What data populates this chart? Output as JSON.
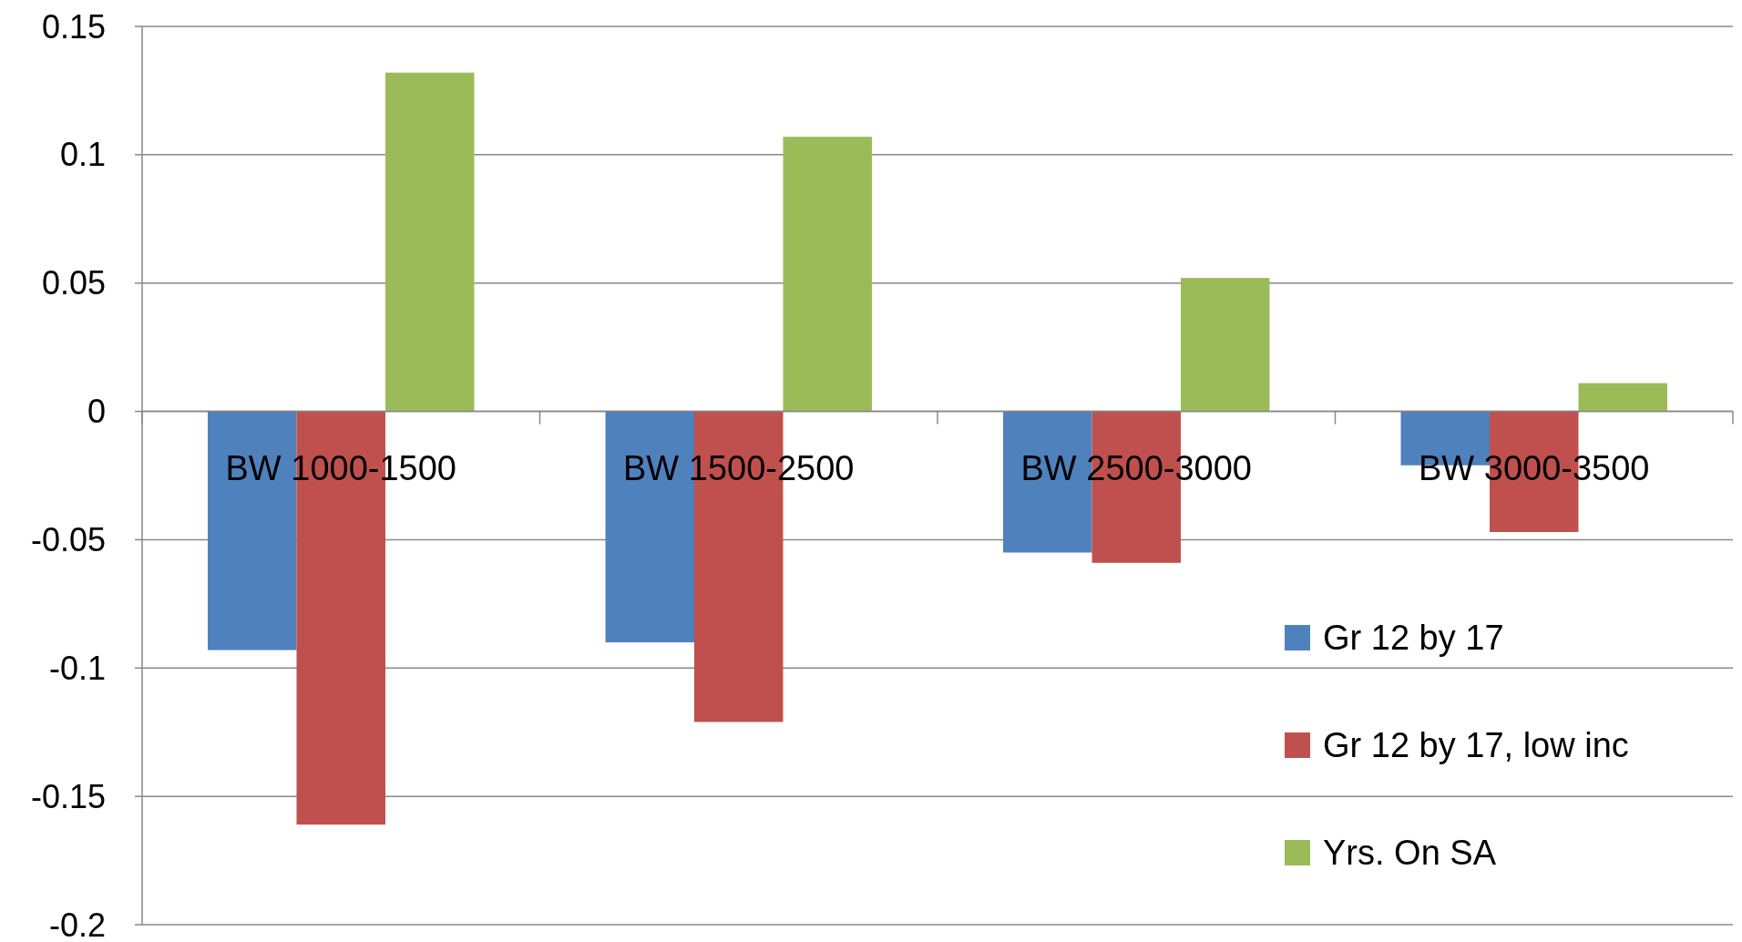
{
  "chart_data": {
    "type": "bar",
    "categories": [
      "BW 1000-1500",
      "BW 1500-2500",
      "BW 2500-3000",
      "BW 3000-3500"
    ],
    "series": [
      {
        "name": "Gr 12 by 17",
        "color": "#4f81bd",
        "values": [
          -0.093,
          -0.09,
          -0.055,
          -0.021
        ]
      },
      {
        "name": "Gr 12 by 17, low inc",
        "color": "#c0504d",
        "values": [
          -0.161,
          -0.121,
          -0.059,
          -0.047
        ]
      },
      {
        "name": "Yrs. On SA",
        "color": "#9bbb59",
        "values": [
          0.132,
          0.107,
          0.052,
          0.011
        ]
      }
    ],
    "ylim": [
      -0.2,
      0.15
    ],
    "yticks": [
      -0.2,
      -0.15,
      -0.1,
      -0.05,
      0,
      0.05,
      0.1,
      0.15
    ],
    "grid": "y",
    "legend": "bottom right"
  }
}
